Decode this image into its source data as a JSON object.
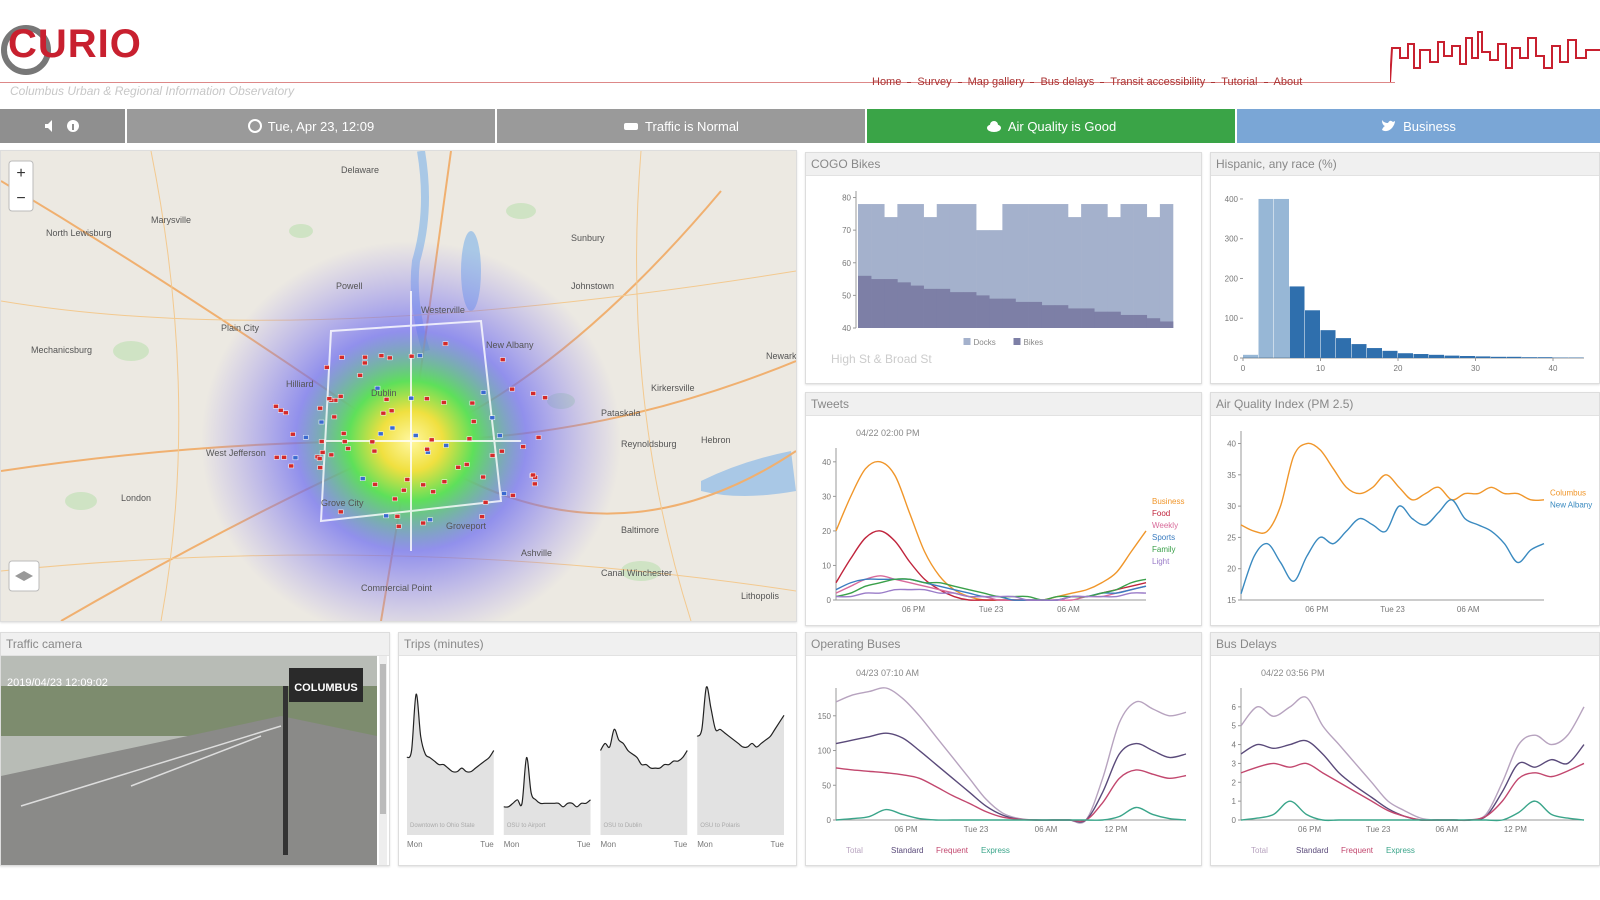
{
  "header": {
    "logo": "CURIO",
    "subtitle": "Columbus Urban & Regional Information Observatory",
    "nav": [
      "Home",
      "Survey",
      "Map gallery",
      "Bus delays",
      "Transit accessibility",
      "Tutorial",
      "About"
    ]
  },
  "status_bar": {
    "datetime": "Tue, Apr 23, 12:09",
    "traffic": "Traffic is Normal",
    "air_quality": "Air Quality is Good",
    "twitter": "Business"
  },
  "map": {
    "zoom_in": "+",
    "zoom_out": "−",
    "places": [
      "Delaware",
      "Sunbury",
      "Marysville",
      "Plain City",
      "Powell",
      "Westerville",
      "Johnstown",
      "New Albany",
      "Dublin",
      "Hilliard",
      "Pataskala",
      "Kirkersville",
      "Hebron",
      "West Jefferson",
      "Grove City",
      "Groveport",
      "London",
      "Canal Winchester",
      "Baltimore",
      "Commercial Point",
      "Ashville",
      "Newark",
      "Reynoldsburg",
      "North Lewisburg",
      "Mechanicsburg",
      "Lithopolis"
    ]
  },
  "panels": [
    {
      "title": "COGO Bikes",
      "chart": {
        "type": "bars_overlay",
        "ylim": [
          40,
          82
        ],
        "yticks": [
          40,
          50,
          60,
          70,
          80
        ],
        "footer": "High St & Broad St",
        "series": [
          {
            "name": "Docks",
            "color": "#a4b1cc",
            "values": [
              78,
              78,
              74,
              78,
              78,
              74,
              78,
              78,
              78,
              70,
              70,
              78,
              78,
              78,
              78,
              78,
              74,
              78,
              78,
              74,
              78,
              78,
              74,
              78
            ]
          },
          {
            "name": "Bikes",
            "color": "#7d7fa6",
            "values": [
              56,
              55,
              55,
              54,
              53,
              52,
              52,
              51,
              51,
              50,
              49,
              49,
              48,
              48,
              47,
              47,
              46,
              46,
              45,
              45,
              44,
              44,
              43,
              42
            ]
          }
        ]
      }
    },
    {
      "title": "Hispanic, any race (%)",
      "chart": {
        "type": "histogram",
        "color": "#2f6fad",
        "bins": [
          0,
          2,
          4,
          6,
          8,
          10,
          12,
          14,
          16,
          18,
          20,
          22,
          24,
          26,
          28,
          30,
          32,
          34,
          36,
          38,
          40,
          42,
          44
        ],
        "counts": [
          8,
          400,
          400,
          180,
          120,
          70,
          50,
          35,
          25,
          18,
          12,
          10,
          8,
          6,
          5,
          4,
          3,
          3,
          2,
          2,
          1,
          1
        ],
        "xlim": [
          0,
          44
        ],
        "xticks": [
          0,
          10,
          20,
          30,
          40
        ],
        "ylim": [
          0,
          420
        ],
        "yticks": [
          0,
          100,
          200,
          300,
          400
        ]
      }
    },
    {
      "title": "Tweets",
      "chart": {
        "type": "line",
        "annotation": "04/22 02:00 PM",
        "legend": "right",
        "ylim": [
          0,
          44
        ],
        "yticks": [
          0,
          10,
          20,
          30,
          40
        ],
        "x_labels": [
          "06 PM",
          "Tue 23",
          "06 AM"
        ],
        "series": [
          {
            "name": "Business",
            "color": "#f0962a",
            "values": [
              20,
              30,
              38,
              40,
              36,
              25,
              14,
              7,
              3,
              1,
              0,
              0,
              0,
              0,
              0,
              1,
              2,
              3,
              5,
              8,
              14,
              20
            ]
          },
          {
            "name": "Food",
            "color": "#c0243c",
            "values": [
              5,
              12,
              18,
              20,
              17,
              11,
              6,
              3,
              1,
              0,
              0,
              0,
              0,
              0,
              0,
              0,
              1,
              1,
              2,
              3,
              4,
              5
            ]
          },
          {
            "name": "Weekly",
            "color": "#d86a9a",
            "values": [
              2,
              4,
              6,
              7,
              6,
              5,
              4,
              3,
              2,
              1,
              1,
              0,
              0,
              0,
              0,
              0,
              0,
              1,
              1,
              2,
              3,
              4
            ]
          },
          {
            "name": "Sports",
            "color": "#3a7cc0",
            "values": [
              3,
              5,
              6,
              6,
              6,
              6,
              5,
              4,
              3,
              2,
              1,
              1,
              0,
              0,
              0,
              0,
              1,
              1,
              2,
              2,
              3,
              4
            ]
          },
          {
            "name": "Family",
            "color": "#3aa04a",
            "values": [
              1,
              2,
              4,
              5,
              6,
              6,
              5,
              5,
              4,
              3,
              2,
              1,
              1,
              1,
              0,
              1,
              1,
              1,
              2,
              3,
              5,
              6
            ]
          },
          {
            "name": "Light",
            "color": "#9a7cc8",
            "values": [
              1,
              1,
              2,
              2,
              3,
              3,
              3,
              2,
              2,
              1,
              1,
              1,
              1,
              0,
              0,
              0,
              1,
              1,
              1,
              1,
              2,
              2
            ]
          }
        ]
      }
    },
    {
      "title": "Air Quality Index (PM 2.5)",
      "chart": {
        "type": "line",
        "legend": "right",
        "ylim": [
          15,
          42
        ],
        "yticks": [
          15,
          20,
          25,
          30,
          35,
          40
        ],
        "x_labels": [
          "06 PM",
          "Tue 23",
          "06 AM"
        ],
        "series": [
          {
            "name": "Columbus",
            "color": "#f0962a",
            "values": [
              27,
              26,
              26,
              30,
              38,
              40,
              39,
              36,
              33,
              32,
              33,
              35,
              33,
              31,
              32,
              33,
              31,
              32,
              32,
              33,
              32,
              32,
              31,
              31
            ]
          },
          {
            "name": "New Albany",
            "color": "#3a8ac0",
            "values": [
              16,
              22,
              24,
              21,
              18,
              22,
              25,
              24,
              26,
              28,
              27,
              26,
              30,
              28,
              27,
              29,
              31,
              28,
              27,
              26,
              24,
              21,
              23,
              24
            ]
          }
        ]
      }
    },
    {
      "title": "Traffic camera",
      "camera": {
        "timestamp": "2019/04/23 12:09:02",
        "overlay": "COLUMBUS"
      }
    },
    {
      "title": "Trips (minutes)",
      "chart": {
        "type": "small_multiples",
        "ylim": [
          0,
          48
        ],
        "x_labels": [
          "Mon",
          "Tue"
        ],
        "subs": [
          {
            "caption": "Downtown to Ohio State",
            "values": [
              22,
              24,
              40,
              28,
              23,
              22,
              21,
              20,
              20,
              19,
              18,
              18,
              19,
              18,
              18,
              19,
              20,
              21,
              22,
              24
            ]
          },
          {
            "caption": "OSU to Airport",
            "values": [
              8,
              8,
              9,
              10,
              9,
              22,
              12,
              10,
              9,
              9,
              9,
              9,
              9,
              8,
              9,
              9,
              8,
              9,
              9,
              10
            ]
          },
          {
            "caption": "OSU to Dublin",
            "values": [
              24,
              26,
              25,
              30,
              27,
              26,
              24,
              23,
              22,
              20,
              20,
              19,
              19,
              19,
              20,
              20,
              21,
              21,
              22,
              24
            ]
          },
          {
            "caption": "OSU to Polaris",
            "values": [
              28,
              30,
              42,
              36,
              30,
              30,
              29,
              28,
              27,
              26,
              25,
              25,
              26,
              25,
              26,
              27,
              28,
              30,
              32,
              34
            ]
          }
        ]
      }
    },
    {
      "title": "Operating Buses",
      "chart": {
        "type": "line",
        "annotation": "04/23 07:10 AM",
        "legend": "bottom",
        "ylim": [
          0,
          190
        ],
        "yticks": [
          0,
          50,
          100,
          150
        ],
        "x_labels": [
          "06 PM",
          "Tue 23",
          "06 AM",
          "12 PM"
        ],
        "series": [
          {
            "name": "Total",
            "color": "#b7a3bf",
            "values": [
              170,
              180,
              185,
              190,
              175,
              150,
              120,
              90,
              60,
              30,
              10,
              2,
              0,
              0,
              0,
              0,
              60,
              140,
              170,
              160,
              150,
              155
            ]
          },
          {
            "name": "Standard",
            "color": "#5a4a7a",
            "values": [
              110,
              115,
              120,
              125,
              118,
              100,
              80,
              60,
              40,
              20,
              7,
              1,
              0,
              0,
              0,
              0,
              40,
              95,
              110,
              100,
              90,
              95
            ]
          },
          {
            "name": "Frequent",
            "color": "#c2476e",
            "values": [
              75,
              72,
              70,
              68,
              65,
              60,
              48,
              35,
              24,
              12,
              4,
              1,
              0,
              0,
              0,
              0,
              25,
              60,
              72,
              66,
              60,
              64
            ]
          },
          {
            "name": "Express",
            "color": "#3aa58a",
            "values": [
              0,
              2,
              5,
              15,
              8,
              2,
              0,
              0,
              0,
              0,
              0,
              0,
              0,
              0,
              0,
              0,
              0,
              5,
              18,
              8,
              2,
              0
            ]
          }
        ]
      }
    },
    {
      "title": "Bus Delays",
      "chart": {
        "type": "line",
        "annotation": "04/22 03:56 PM",
        "legend": "bottom",
        "ylim": [
          0,
          7
        ],
        "yticks": [
          0,
          1,
          2,
          3,
          4,
          5,
          6
        ],
        "x_labels": [
          "06 PM",
          "Tue 23",
          "06 AM",
          "12 PM"
        ],
        "series": [
          {
            "name": "Total",
            "color": "#b7a3bf",
            "values": [
              5,
              6,
              5.5,
              6,
              6.5,
              5,
              4,
              3,
              2,
              1,
              0.5,
              0.1,
              0,
              0,
              0,
              0.3,
              2,
              4,
              4.5,
              4,
              4.5,
              6
            ]
          },
          {
            "name": "Standard",
            "color": "#5a4a7a",
            "values": [
              3.5,
              4,
              3.8,
              4,
              4.2,
              3.5,
              2.5,
              1.8,
              1.2,
              0.6,
              0.2,
              0,
              0,
              0,
              0,
              0.2,
              1.5,
              3,
              2.8,
              3.2,
              3,
              4
            ]
          },
          {
            "name": "Frequent",
            "color": "#c2476e",
            "values": [
              2.5,
              2.8,
              3,
              2.8,
              3,
              2.5,
              2,
              1.5,
              1,
              0.5,
              0.2,
              0,
              0,
              0,
              0,
              0.2,
              1,
              2.2,
              2.5,
              2.3,
              2.6,
              3
            ]
          },
          {
            "name": "Express",
            "color": "#3aa58a",
            "values": [
              0,
              0.1,
              0.3,
              1,
              0.3,
              0,
              0,
              0,
              0,
              0,
              0,
              0,
              0,
              0,
              0,
              0,
              0,
              0.4,
              1,
              0.3,
              0.1,
              0
            ]
          }
        ]
      }
    }
  ]
}
